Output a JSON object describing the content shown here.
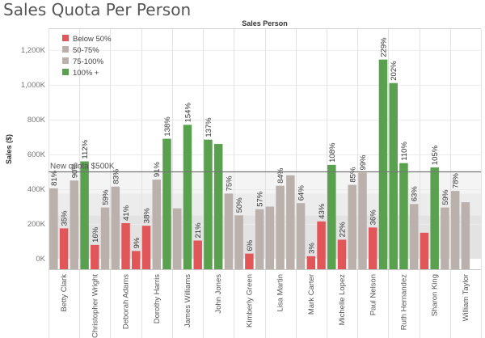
{
  "title": "Sales Quota Per Person",
  "chart_data": {
    "type": "bar",
    "title": "Sales Quota Per Person",
    "column_header": "Sales Person",
    "ylabel": "Sales ($)",
    "xlabel": "",
    "ylim": [
      -60000,
      1320000
    ],
    "yticks": [
      0,
      200000,
      400000,
      600000,
      800000,
      1000000,
      1200000
    ],
    "ytick_labels": [
      "0K",
      "200K",
      "400K",
      "600K",
      "800K",
      "1,000K",
      "1,200K"
    ],
    "reference_line": {
      "value": 500000,
      "label": "New quota $500K"
    },
    "reference_bands": [
      {
        "from": 0,
        "to": 250000,
        "color": "#e3e3e3"
      },
      {
        "from": 250000,
        "to": 375000,
        "color": "#ececec"
      },
      {
        "from": 375000,
        "to": 500000,
        "color": "#f4f4f4"
      }
    ],
    "legend": {
      "position": "top-left",
      "items": [
        {
          "label": "Below 50%",
          "color": "#e15759"
        },
        {
          "label": "50-75%",
          "color": "#bab0ac"
        },
        {
          "label": "75-100%",
          "color": "#bab0ac"
        },
        {
          "label": "100% +",
          "color": "#59a14f"
        }
      ]
    },
    "colors": {
      "below50": "#e15759",
      "mid": "#bab0ac",
      "above100": "#59a14f"
    },
    "persons": [
      {
        "name": "Betty Clark",
        "bars": [
          {
            "value": 405000,
            "label": "81%",
            "category": "75-100%"
          },
          {
            "value": 175000,
            "label": "35%",
            "category": "Below 50%"
          },
          {
            "value": 450000,
            "label": "90%",
            "category": "75-100%"
          }
        ]
      },
      {
        "name": "Christopher Wright",
        "bars": [
          {
            "value": 560000,
            "label": "112%",
            "category": "100% +"
          },
          {
            "value": 80000,
            "label": "16%",
            "category": "Below 50%"
          },
          {
            "value": 295000,
            "label": "59%",
            "category": "50-75%"
          }
        ]
      },
      {
        "name": "Deborah Adams",
        "bars": [
          {
            "value": 415000,
            "label": "83%",
            "category": "75-100%"
          },
          {
            "value": 205000,
            "label": "41%",
            "category": "Below 50%"
          },
          {
            "value": 45000,
            "label": "9%",
            "category": "Below 50%"
          }
        ]
      },
      {
        "name": "Dorothy Harris",
        "bars": [
          {
            "value": 190000,
            "label": "38%",
            "category": "Below 50%"
          },
          {
            "value": 455000,
            "label": "91%",
            "category": "75-100%"
          },
          {
            "value": 690000,
            "label": "138%",
            "category": "100% +"
          }
        ]
      },
      {
        "name": "James Williams",
        "bars": [
          {
            "value": 290000,
            "label": "",
            "category": "50-75%"
          },
          {
            "value": 770000,
            "label": "154%",
            "category": "100% +"
          },
          {
            "value": 105000,
            "label": "21%",
            "category": "Below 50%"
          }
        ]
      },
      {
        "name": "John Jones",
        "bars": [
          {
            "value": 685000,
            "label": "137%",
            "category": "100% +"
          },
          {
            "value": 660000,
            "label": "",
            "category": "100% +"
          },
          {
            "value": 375000,
            "label": "75%",
            "category": "75-100%"
          }
        ]
      },
      {
        "name": "Kimberly Green",
        "bars": [
          {
            "value": 250000,
            "label": "50%",
            "category": "50-75%"
          },
          {
            "value": 30000,
            "label": "6%",
            "category": "Below 50%"
          },
          {
            "value": 285000,
            "label": "57%",
            "category": "50-75%"
          }
        ]
      },
      {
        "name": "Lisa Martin",
        "bars": [
          {
            "value": 300000,
            "label": "",
            "category": "50-75%"
          },
          {
            "value": 420000,
            "label": "84%",
            "category": "75-100%"
          },
          {
            "value": 480000,
            "label": "",
            "category": "75-100%"
          }
        ]
      },
      {
        "name": "Mark Carter",
        "bars": [
          {
            "value": 320000,
            "label": "64%",
            "category": "50-75%"
          },
          {
            "value": 15000,
            "label": "3%",
            "category": "Below 50%"
          },
          {
            "value": 215000,
            "label": "43%",
            "category": "Below 50%"
          }
        ]
      },
      {
        "name": "Michelle Lopez",
        "bars": [
          {
            "value": 540000,
            "label": "108%",
            "category": "100% +"
          },
          {
            "value": 110000,
            "label": "22%",
            "category": "Below 50%"
          },
          {
            "value": 425000,
            "label": "85%",
            "category": "75-100%"
          }
        ]
      },
      {
        "name": "Paul Nelson",
        "bars": [
          {
            "value": 495000,
            "label": "99%",
            "category": "75-100%"
          },
          {
            "value": 180000,
            "label": "36%",
            "category": "Below 50%"
          },
          {
            "value": 1145000,
            "label": "229%",
            "category": "100% +"
          }
        ]
      },
      {
        "name": "Ruth Hernandez",
        "bars": [
          {
            "value": 1010000,
            "label": "202%",
            "category": "100% +"
          },
          {
            "value": 550000,
            "label": "110%",
            "category": "100% +"
          },
          {
            "value": 315000,
            "label": "63%",
            "category": "50-75%"
          }
        ]
      },
      {
        "name": "Sharon King",
        "bars": [
          {
            "value": 150000,
            "label": "",
            "category": "Below 50%"
          },
          {
            "value": 525000,
            "label": "105%",
            "category": "100% +"
          },
          {
            "value": 295000,
            "label": "59%",
            "category": "50-75%"
          }
        ]
      },
      {
        "name": "William Taylor",
        "bars": [
          {
            "value": 390000,
            "label": "78%",
            "category": "75-100%"
          },
          {
            "value": 325000,
            "label": "",
            "category": "50-75%"
          }
        ]
      }
    ]
  }
}
